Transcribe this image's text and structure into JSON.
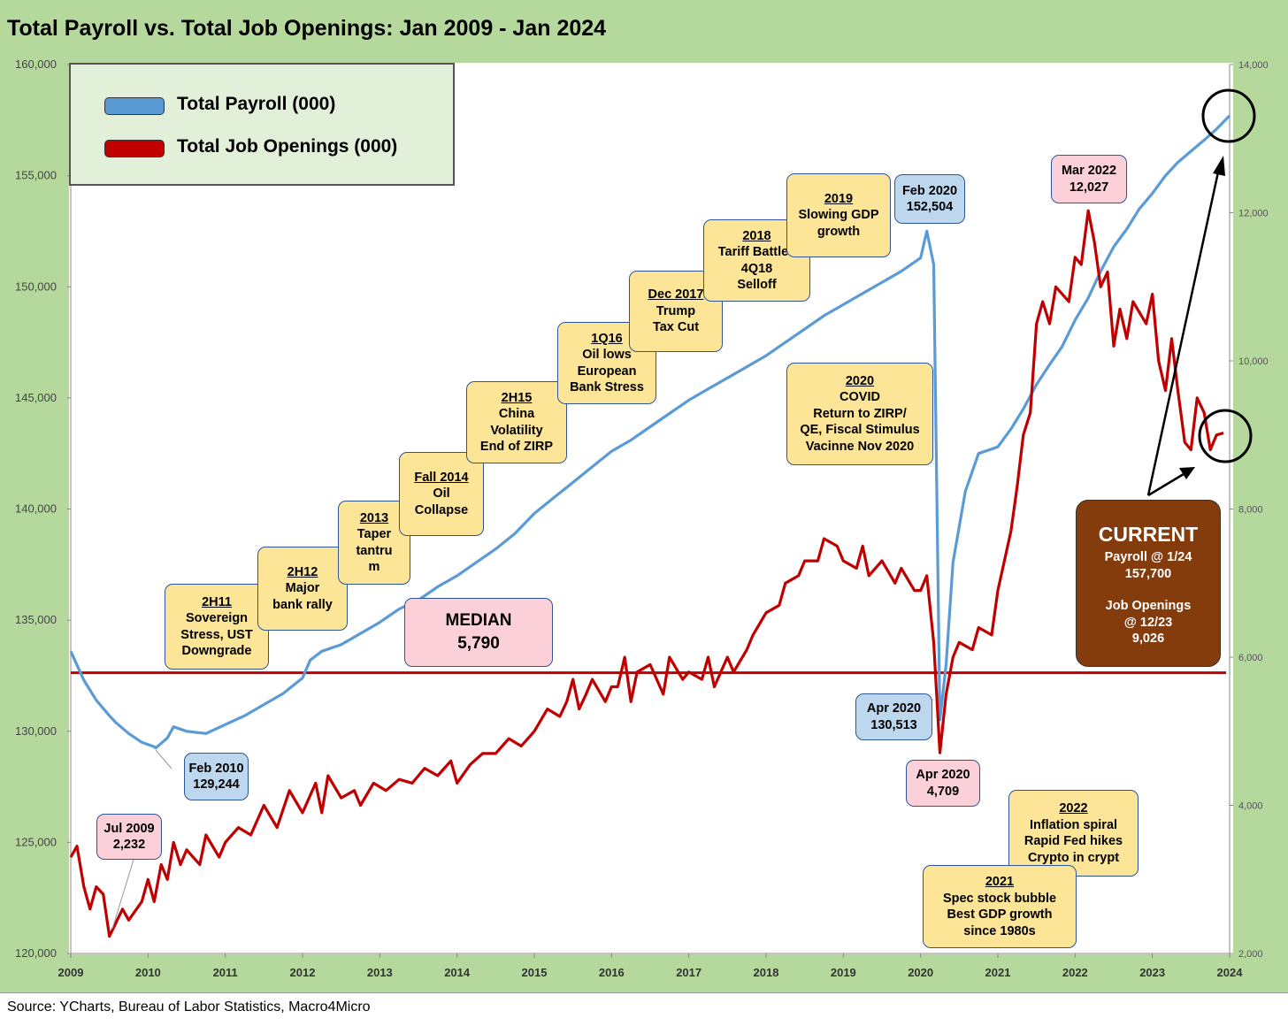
{
  "title": "Total Payroll vs. Total Job Openings: Jan 2009 - Jan 2024",
  "source": "Source: YCharts, Bureau of Labor Statistics, Macro4Micro",
  "colors": {
    "payroll": "#5b9bd5",
    "openings": "#c00000",
    "median_line": "#c00000",
    "background": "#b5d89c"
  },
  "chart_data": {
    "type": "line",
    "x_ticks": [
      "2009",
      "2010",
      "2011",
      "2012",
      "2013",
      "2014",
      "2015",
      "2016",
      "2017",
      "2018",
      "2019",
      "2020",
      "2021",
      "2022",
      "2023",
      "2024"
    ],
    "y_left_ticks": [
      "120,000",
      "125,000",
      "130,000",
      "135,000",
      "140,000",
      "145,000",
      "150,000",
      "155,000",
      "160,000"
    ],
    "y_right_ticks": [
      "2,000",
      "4,000",
      "6,000",
      "8,000",
      "10,000",
      "12,000",
      "14,000"
    ],
    "ylim_left": [
      120000,
      160000
    ],
    "ylim_right": [
      2000,
      14000
    ],
    "xlim": [
      2009,
      2024
    ],
    "legend": [
      "Total Payroll (000)",
      "Total Job Openings (000)"
    ],
    "series": [
      {
        "name": "Total Payroll (000)",
        "axis": "left",
        "points": [
          [
            2009.0,
            133600
          ],
          [
            2009.17,
            132300
          ],
          [
            2009.33,
            131400
          ],
          [
            2009.5,
            130700
          ],
          [
            2009.58,
            130400
          ],
          [
            2009.75,
            129900
          ],
          [
            2009.92,
            129500
          ],
          [
            2010.08,
            129300
          ],
          [
            2010.1,
            129244
          ],
          [
            2010.25,
            129700
          ],
          [
            2010.33,
            130200
          ],
          [
            2010.5,
            130000
          ],
          [
            2010.75,
            129900
          ],
          [
            2011.0,
            130300
          ],
          [
            2011.25,
            130700
          ],
          [
            2011.5,
            131200
          ],
          [
            2011.75,
            131700
          ],
          [
            2012.0,
            132400
          ],
          [
            2012.1,
            133200
          ],
          [
            2012.25,
            133600
          ],
          [
            2012.5,
            133900
          ],
          [
            2012.75,
            134400
          ],
          [
            2013.0,
            134900
          ],
          [
            2013.25,
            135500
          ],
          [
            2013.5,
            135900
          ],
          [
            2013.75,
            136500
          ],
          [
            2014.0,
            137000
          ],
          [
            2014.25,
            137600
          ],
          [
            2014.5,
            138200
          ],
          [
            2014.75,
            138900
          ],
          [
            2015.0,
            139800
          ],
          [
            2015.25,
            140500
          ],
          [
            2015.5,
            141200
          ],
          [
            2015.75,
            141900
          ],
          [
            2016.0,
            142600
          ],
          [
            2016.25,
            143100
          ],
          [
            2016.5,
            143700
          ],
          [
            2016.75,
            144300
          ],
          [
            2017.0,
            144900
          ],
          [
            2017.25,
            145400
          ],
          [
            2017.5,
            145900
          ],
          [
            2017.75,
            146400
          ],
          [
            2018.0,
            146900
          ],
          [
            2018.25,
            147500
          ],
          [
            2018.5,
            148100
          ],
          [
            2018.75,
            148700
          ],
          [
            2019.0,
            149200
          ],
          [
            2019.25,
            149700
          ],
          [
            2019.5,
            150200
          ],
          [
            2019.75,
            150700
          ],
          [
            2020.0,
            151300
          ],
          [
            2020.08,
            152504
          ],
          [
            2020.17,
            151000
          ],
          [
            2020.25,
            130513
          ],
          [
            2020.33,
            133000
          ],
          [
            2020.42,
            137600
          ],
          [
            2020.58,
            140800
          ],
          [
            2020.75,
            142500
          ],
          [
            2020.92,
            142700
          ],
          [
            2021.0,
            142800
          ],
          [
            2021.17,
            143600
          ],
          [
            2021.33,
            144500
          ],
          [
            2021.5,
            145600
          ],
          [
            2021.67,
            146500
          ],
          [
            2021.83,
            147300
          ],
          [
            2022.0,
            148500
          ],
          [
            2022.17,
            149500
          ],
          [
            2022.33,
            150700
          ],
          [
            2022.5,
            151800
          ],
          [
            2022.67,
            152600
          ],
          [
            2022.83,
            153500
          ],
          [
            2023.0,
            154200
          ],
          [
            2023.17,
            155000
          ],
          [
            2023.33,
            155600
          ],
          [
            2023.5,
            156100
          ],
          [
            2023.67,
            156600
          ],
          [
            2023.83,
            157100
          ],
          [
            2024.0,
            157700
          ]
        ]
      },
      {
        "name": "Total Job Openings (000)",
        "axis": "right",
        "points": [
          [
            2009.0,
            3300
          ],
          [
            2009.08,
            3450
          ],
          [
            2009.17,
            2900
          ],
          [
            2009.25,
            2600
          ],
          [
            2009.33,
            2900
          ],
          [
            2009.42,
            2800
          ],
          [
            2009.5,
            2232
          ],
          [
            2009.67,
            2600
          ],
          [
            2009.75,
            2450
          ],
          [
            2009.92,
            2700
          ],
          [
            2010.0,
            3000
          ],
          [
            2010.08,
            2700
          ],
          [
            2010.17,
            3200
          ],
          [
            2010.25,
            3000
          ],
          [
            2010.33,
            3500
          ],
          [
            2010.42,
            3200
          ],
          [
            2010.5,
            3400
          ],
          [
            2010.67,
            3200
          ],
          [
            2010.75,
            3600
          ],
          [
            2010.92,
            3300
          ],
          [
            2011.0,
            3500
          ],
          [
            2011.17,
            3700
          ],
          [
            2011.33,
            3600
          ],
          [
            2011.5,
            4000
          ],
          [
            2011.67,
            3700
          ],
          [
            2011.83,
            4200
          ],
          [
            2012.0,
            3900
          ],
          [
            2012.17,
            4300
          ],
          [
            2012.25,
            3900
          ],
          [
            2012.33,
            4400
          ],
          [
            2012.5,
            4100
          ],
          [
            2012.67,
            4200
          ],
          [
            2012.75,
            4000
          ],
          [
            2012.92,
            4300
          ],
          [
            2013.08,
            4200
          ],
          [
            2013.25,
            4350
          ],
          [
            2013.42,
            4300
          ],
          [
            2013.58,
            4500
          ],
          [
            2013.75,
            4400
          ],
          [
            2013.92,
            4600
          ],
          [
            2014.0,
            4300
          ],
          [
            2014.17,
            4550
          ],
          [
            2014.33,
            4700
          ],
          [
            2014.5,
            4700
          ],
          [
            2014.67,
            4900
          ],
          [
            2014.83,
            4800
          ],
          [
            2015.0,
            5000
          ],
          [
            2015.17,
            5300
          ],
          [
            2015.33,
            5200
          ],
          [
            2015.42,
            5400
          ],
          [
            2015.5,
            5700
          ],
          [
            2015.58,
            5300
          ],
          [
            2015.67,
            5500
          ],
          [
            2015.75,
            5700
          ],
          [
            2015.92,
            5400
          ],
          [
            2016.0,
            5600
          ],
          [
            2016.08,
            5600
          ],
          [
            2016.17,
            6000
          ],
          [
            2016.25,
            5400
          ],
          [
            2016.33,
            5800
          ],
          [
            2016.5,
            5900
          ],
          [
            2016.67,
            5500
          ],
          [
            2016.75,
            6000
          ],
          [
            2016.92,
            5700
          ],
          [
            2017.0,
            5800
          ],
          [
            2017.17,
            5700
          ],
          [
            2017.25,
            6000
          ],
          [
            2017.33,
            5600
          ],
          [
            2017.5,
            6000
          ],
          [
            2017.58,
            5800
          ],
          [
            2017.75,
            6100
          ],
          [
            2017.83,
            6300
          ],
          [
            2018.0,
            6600
          ],
          [
            2018.17,
            6700
          ],
          [
            2018.25,
            7000
          ],
          [
            2018.42,
            7100
          ],
          [
            2018.5,
            7300
          ],
          [
            2018.67,
            7300
          ],
          [
            2018.75,
            7600
          ],
          [
            2018.92,
            7500
          ],
          [
            2019.0,
            7300
          ],
          [
            2019.17,
            7200
          ],
          [
            2019.25,
            7500
          ],
          [
            2019.33,
            7100
          ],
          [
            2019.5,
            7300
          ],
          [
            2019.67,
            7000
          ],
          [
            2019.75,
            7200
          ],
          [
            2019.92,
            6900
          ],
          [
            2020.0,
            6900
          ],
          [
            2020.08,
            7100
          ],
          [
            2020.17,
            6200
          ],
          [
            2020.25,
            4709
          ],
          [
            2020.33,
            5500
          ],
          [
            2020.42,
            6000
          ],
          [
            2020.5,
            6200
          ],
          [
            2020.67,
            6100
          ],
          [
            2020.75,
            6400
          ],
          [
            2020.92,
            6300
          ],
          [
            2021.0,
            6900
          ],
          [
            2021.17,
            7700
          ],
          [
            2021.25,
            8300
          ],
          [
            2021.33,
            9000
          ],
          [
            2021.42,
            9300
          ],
          [
            2021.5,
            10500
          ],
          [
            2021.58,
            10800
          ],
          [
            2021.67,
            10500
          ],
          [
            2021.75,
            11000
          ],
          [
            2021.92,
            10800
          ],
          [
            2022.0,
            11400
          ],
          [
            2022.08,
            11300
          ],
          [
            2022.17,
            12027
          ],
          [
            2022.25,
            11600
          ],
          [
            2022.33,
            11000
          ],
          [
            2022.42,
            11200
          ],
          [
            2022.5,
            10200
          ],
          [
            2022.58,
            10700
          ],
          [
            2022.67,
            10300
          ],
          [
            2022.75,
            10800
          ],
          [
            2022.92,
            10500
          ],
          [
            2023.0,
            10900
          ],
          [
            2023.08,
            10000
          ],
          [
            2023.17,
            9600
          ],
          [
            2023.25,
            10300
          ],
          [
            2023.33,
            9600
          ],
          [
            2023.42,
            8900
          ],
          [
            2023.5,
            8800
          ],
          [
            2023.58,
            9500
          ],
          [
            2023.67,
            9300
          ],
          [
            2023.75,
            8800
          ],
          [
            2023.83,
            9000
          ],
          [
            2023.92,
            9026
          ]
        ]
      }
    ],
    "median": {
      "value": 5790,
      "axis": "right"
    }
  },
  "legend_labels": {
    "payroll": "Total Payroll (000)",
    "openings": "Total Job Openings (000)"
  },
  "annotations": {
    "a2h11": {
      "head": "2H11",
      "body": [
        "Sovereign",
        "Stress, UST",
        "Downgrade"
      ]
    },
    "a2h12": {
      "head": "2H12",
      "body": [
        "Major",
        "bank rally"
      ]
    },
    "a2013": {
      "head": "2013",
      "body": [
        "Taper",
        "tantru",
        "m"
      ]
    },
    "afall2014": {
      "head": "Fall 2014",
      "body": [
        "Oil",
        "Collapse"
      ]
    },
    "a2h15": {
      "head": "2H15",
      "body": [
        "China",
        "Volatility",
        "End of ZIRP"
      ]
    },
    "a1q16": {
      "head": "1Q16",
      "body": [
        "Oil lows",
        "European",
        "Bank Stress"
      ]
    },
    "adec2017": {
      "head": "Dec 2017",
      "body": [
        "Trump",
        "Tax Cut"
      ]
    },
    "a2018": {
      "head": "2018",
      "body": [
        "Tariff Battles",
        "4Q18",
        "Selloff"
      ]
    },
    "a2019": {
      "head": "2019",
      "body": [
        "Slowing GDP",
        "growth"
      ]
    },
    "a2020": {
      "head": "2020",
      "body": [
        "COVID",
        "Return to ZIRP/",
        "QE, Fiscal Stimulus",
        "Vacinne Nov 2020"
      ]
    },
    "a2021": {
      "head": "2021",
      "body": [
        "Spec stock bubble",
        "Best GDP growth",
        "since 1980s"
      ]
    },
    "a2022": {
      "head": "2022",
      "body": [
        "Inflation spiral",
        "Rapid Fed hikes",
        "Crypto in crypt"
      ]
    },
    "feb2020": [
      "Feb 2020",
      "152,504"
    ],
    "apr2020p": [
      "Apr 2020",
      "130,513"
    ],
    "apr2020o": [
      "Apr 2020",
      "4,709"
    ],
    "mar2022": [
      "Mar 2022",
      "12,027"
    ],
    "feb2010": [
      "Feb 2010",
      "129,244"
    ],
    "jul2009": [
      "Jul 2009",
      "2,232"
    ],
    "median": [
      "MEDIAN",
      "5,790"
    ],
    "current": {
      "title": "CURRENT",
      "lines": [
        "Payroll @ 1/24",
        "157,700",
        "",
        "Job Openings",
        "@ 12/23",
        "9,026"
      ]
    }
  }
}
